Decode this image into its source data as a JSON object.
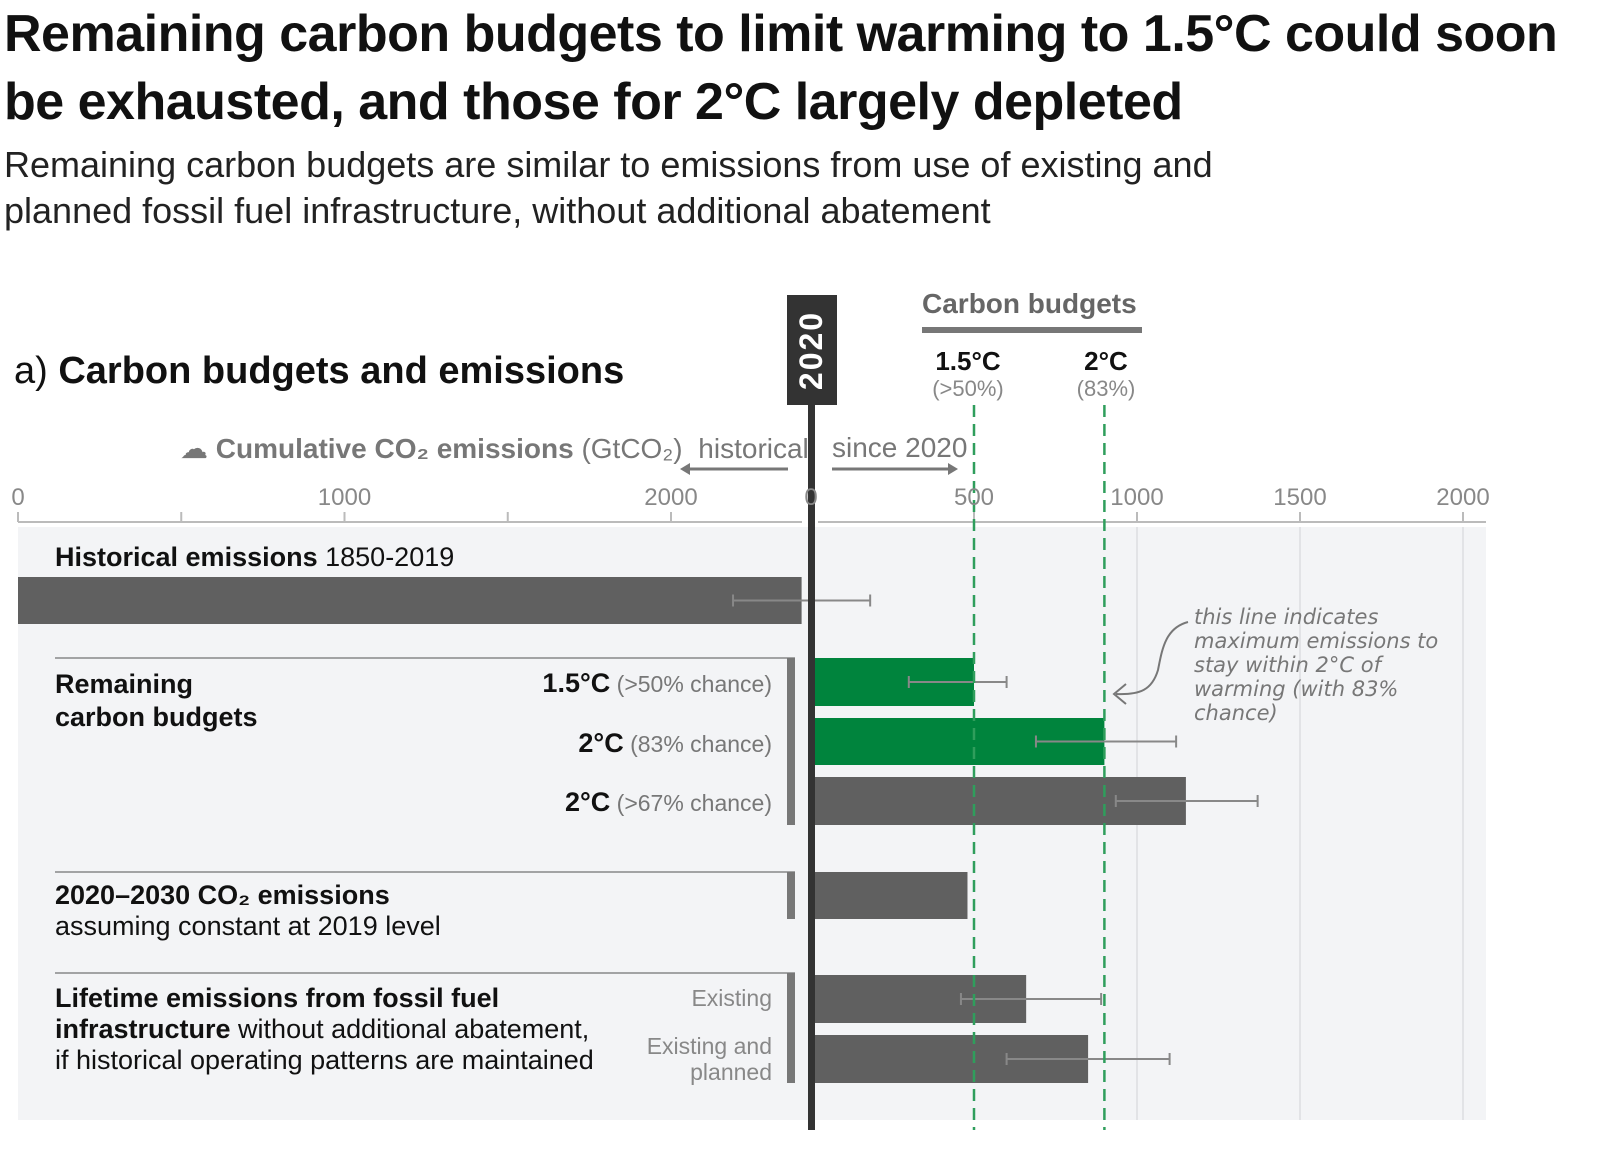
{
  "title": "Remaining carbon budgets to limit warming to 1.5°C could soon be exhausted, and those for 2°C largely depleted",
  "subtitle": "Remaining carbon budgets are similar to emissions from use of existing and planned fossil fuel infrastructure, without additional abatement",
  "panel": {
    "prefix": "a)",
    "title": "Carbon budgets and emissions"
  },
  "year_marker": "2020",
  "carbon_budgets_header": "Carbon budgets",
  "budget_lines": [
    {
      "label": "1.5°C",
      "sub": "(>50%)",
      "value": 500
    },
    {
      "label": "2°C",
      "sub": "(83%)",
      "value": 900
    }
  ],
  "axis_header": {
    "main": "Cumulative CO₂ emissions",
    "unit": "(GtCO₂)",
    "historical": "historical",
    "since": "since 2020"
  },
  "annotation": "this line indicates maximum emissions to stay within 2°C of warming (with 83% chance)",
  "colors": {
    "green": "#00843d",
    "grey_bar": "#606060",
    "panel_bg": "#f3f4f6",
    "dashed": "#2f9e5c"
  },
  "chart_data": {
    "type": "bar",
    "orientation": "horizontal",
    "unit": "GtCO₂",
    "xaxis_historical": {
      "range": [
        0,
        2430
      ],
      "ticks": [
        0,
        1000,
        2000
      ],
      "tick_labels": [
        "0",
        "1000",
        "2000"
      ]
    },
    "xaxis_since_2020": {
      "range": [
        0,
        2050
      ],
      "ticks": [
        0,
        500,
        1000,
        1500,
        2000
      ],
      "tick_labels": [
        "0",
        "500",
        "1000",
        "1500",
        "2000"
      ]
    },
    "grid": true,
    "groups": {
      "historical": {
        "title": "Historical emissions",
        "detail": "1850-2019"
      },
      "budgets": {
        "title_line1": "Remaining",
        "title_line2": "carbon budgets"
      },
      "decade": {
        "title": "2020–2030 CO₂ emissions",
        "detail": "assuming constant at 2019 level"
      },
      "infrastructure": {
        "title_bold1": "Lifetime emissions from fossil fuel",
        "title_bold2": "infrastructure",
        "detail1": " without additional abatement,",
        "detail2": "if historical operating patterns are maintained"
      }
    },
    "bars": [
      {
        "group": "historical",
        "label": "",
        "value": 2400,
        "low": 2190,
        "high": 2610,
        "axis": "historical",
        "color": "grey"
      },
      {
        "group": "budgets",
        "label": "1.5°C",
        "chance": "(>50% chance)",
        "value": 500,
        "low": 300,
        "high": 600,
        "axis": "since_2020",
        "color": "green"
      },
      {
        "group": "budgets",
        "label": "2°C",
        "chance": "(83% chance)",
        "value": 900,
        "low": 690,
        "high": 1120,
        "axis": "since_2020",
        "color": "green"
      },
      {
        "group": "budgets",
        "label": "2°C",
        "chance": "(>67% chance)",
        "value": 1150,
        "low": 935,
        "high": 1370,
        "axis": "since_2020",
        "color": "grey"
      },
      {
        "group": "decade",
        "label": "",
        "value": 480,
        "axis": "since_2020",
        "color": "grey"
      },
      {
        "group": "infrastructure",
        "label": "Existing",
        "value": 660,
        "low": 460,
        "high": 890,
        "axis": "since_2020",
        "color": "grey"
      },
      {
        "group": "infrastructure",
        "label": "Existing and planned",
        "value": 850,
        "low": 600,
        "high": 1100,
        "axis": "since_2020",
        "color": "grey"
      }
    ]
  }
}
